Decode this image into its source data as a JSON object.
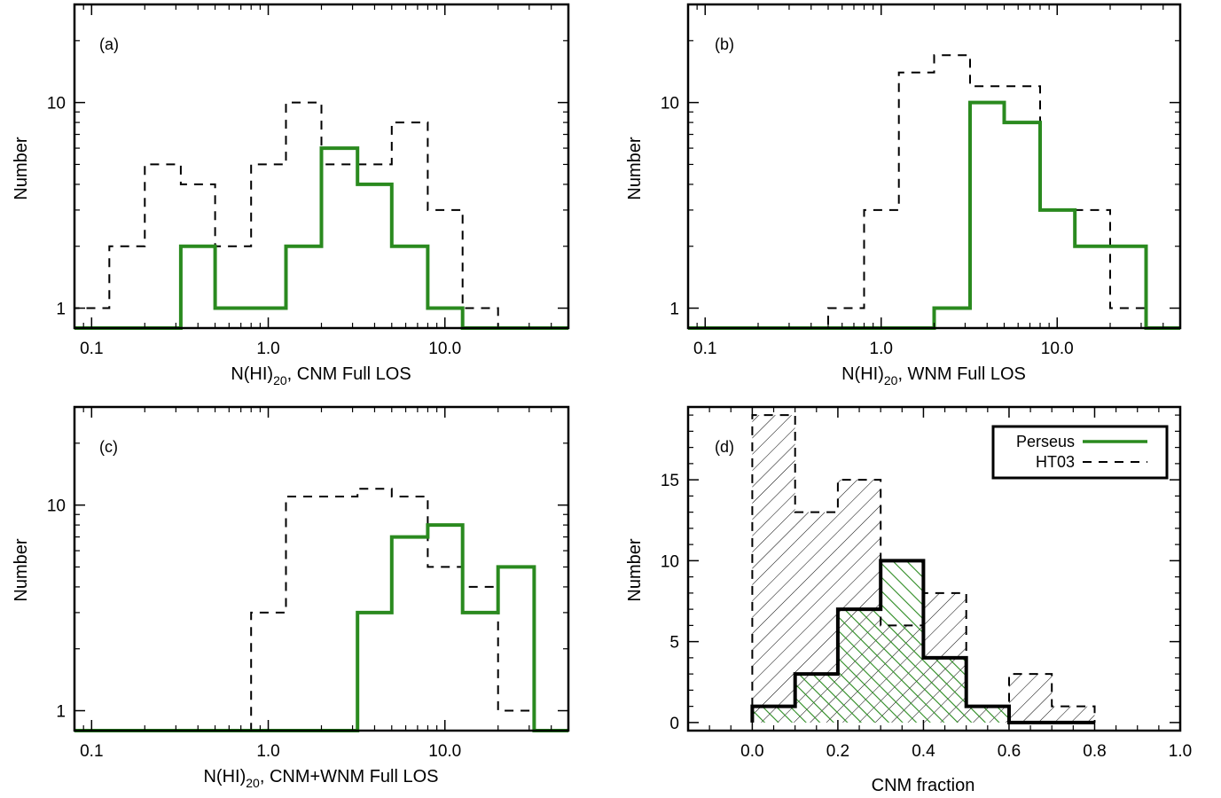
{
  "colors": {
    "perseus": "#2a8a1f",
    "ht03": "#000000"
  },
  "legend": {
    "placement": "top-right",
    "entries": [
      "Perseus",
      "HT03"
    ]
  },
  "chart_data": [
    {
      "type": "bar",
      "panel_label": "(a)",
      "xlabel": {
        "main": "N(HI)",
        "sub": "20",
        "rest": ", CNM Full LOS"
      },
      "ylabel": "Number",
      "x_scale": "log",
      "y_scale": "log",
      "xlim": [
        0.08,
        50
      ],
      "ylim": [
        0.8,
        30
      ],
      "x_ticks": [
        {
          "v": 0.1,
          "label": "0.1"
        },
        {
          "v": 1.0,
          "label": "1.0"
        },
        {
          "v": 10.0,
          "label": "10.0"
        }
      ],
      "y_ticks": [
        {
          "v": 1,
          "label": "1"
        },
        {
          "v": 10,
          "label": "10"
        }
      ],
      "bin_edges": [
        0.08,
        0.126,
        0.2,
        0.32,
        0.5,
        0.8,
        1.26,
        2.0,
        3.2,
        5.0,
        8.0,
        12.6,
        20.0,
        32.0,
        50.0
      ],
      "series": [
        {
          "name": "HT03",
          "style": "dashed",
          "values": [
            1,
            2,
            5,
            4,
            2,
            5,
            10,
            5,
            5,
            8,
            3,
            1,
            0,
            0
          ]
        },
        {
          "name": "Perseus",
          "style": "solid",
          "values": [
            0,
            0,
            0,
            2,
            1,
            1,
            2,
            6,
            4,
            2,
            1,
            0,
            0,
            0
          ]
        }
      ]
    },
    {
      "type": "bar",
      "panel_label": "(b)",
      "xlabel": {
        "main": "N(HI)",
        "sub": "20",
        "rest": ", WNM Full LOS"
      },
      "ylabel": "Number",
      "x_scale": "log",
      "y_scale": "log",
      "xlim": [
        0.08,
        50
      ],
      "ylim": [
        0.8,
        30
      ],
      "x_ticks": [
        {
          "v": 0.1,
          "label": "0.1"
        },
        {
          "v": 1.0,
          "label": "1.0"
        },
        {
          "v": 10.0,
          "label": "10.0"
        }
      ],
      "y_ticks": [
        {
          "v": 1,
          "label": "1"
        },
        {
          "v": 10,
          "label": "10"
        }
      ],
      "bin_edges": [
        0.08,
        0.126,
        0.2,
        0.32,
        0.5,
        0.8,
        1.26,
        2.0,
        3.2,
        5.0,
        8.0,
        12.6,
        20.0,
        32.0,
        50.0
      ],
      "series": [
        {
          "name": "HT03",
          "style": "dashed",
          "values": [
            0,
            0,
            0,
            0,
            1,
            3,
            14,
            17,
            12,
            12,
            3,
            3,
            1,
            0
          ]
        },
        {
          "name": "Perseus",
          "style": "solid",
          "values": [
            0,
            0,
            0,
            0,
            0,
            0,
            0,
            1,
            10,
            8,
            3,
            2,
            2,
            0
          ]
        }
      ]
    },
    {
      "type": "bar",
      "panel_label": "(c)",
      "xlabel": {
        "main": "N(HI)",
        "sub": "20",
        "rest": ", CNM+WNM Full LOS"
      },
      "ylabel": "Number",
      "x_scale": "log",
      "y_scale": "log",
      "xlim": [
        0.08,
        50
      ],
      "ylim": [
        0.8,
        30
      ],
      "x_ticks": [
        {
          "v": 0.1,
          "label": "0.1"
        },
        {
          "v": 1.0,
          "label": "1.0"
        },
        {
          "v": 10.0,
          "label": "10.0"
        }
      ],
      "y_ticks": [
        {
          "v": 1,
          "label": "1"
        },
        {
          "v": 10,
          "label": "10"
        }
      ],
      "bin_edges": [
        0.08,
        0.126,
        0.2,
        0.32,
        0.5,
        0.8,
        1.26,
        2.0,
        3.2,
        5.0,
        8.0,
        12.6,
        20.0,
        32.0,
        50.0
      ],
      "series": [
        {
          "name": "HT03",
          "style": "dashed",
          "values": [
            0,
            0,
            0,
            0,
            0,
            3,
            11,
            11,
            12,
            11,
            5,
            4,
            1,
            0
          ]
        },
        {
          "name": "Perseus",
          "style": "solid",
          "values": [
            0,
            0,
            0,
            0,
            0,
            0,
            0,
            0,
            3,
            7,
            8,
            3,
            5,
            0
          ]
        }
      ]
    },
    {
      "type": "bar",
      "panel_label": "(d)",
      "xlabel": {
        "main": "CNM fraction",
        "sub": "",
        "rest": ""
      },
      "ylabel": "Number",
      "x_scale": "linear",
      "y_scale": "linear",
      "xlim": [
        -0.15,
        1.0
      ],
      "ylim": [
        -0.5,
        19.5
      ],
      "x_ticks": [
        {
          "v": 0.0,
          "label": "0.0"
        },
        {
          "v": 0.2,
          "label": "0.2"
        },
        {
          "v": 0.4,
          "label": "0.4"
        },
        {
          "v": 0.6,
          "label": "0.6"
        },
        {
          "v": 0.8,
          "label": "0.8"
        },
        {
          "v": 1.0,
          "label": "1.0"
        }
      ],
      "y_ticks": [
        {
          "v": 0,
          "label": "0"
        },
        {
          "v": 5,
          "label": "5"
        },
        {
          "v": 10,
          "label": "10"
        },
        {
          "v": 15,
          "label": "15"
        }
      ],
      "bin_edges": [
        0.0,
        0.1,
        0.2,
        0.3,
        0.4,
        0.5,
        0.6,
        0.7,
        0.8
      ],
      "series": [
        {
          "name": "HT03",
          "style": "dashed",
          "values": [
            19,
            13,
            15,
            6,
            8,
            1,
            3,
            1
          ]
        },
        {
          "name": "Perseus",
          "style": "solid",
          "values": [
            1,
            3,
            7,
            10,
            4,
            1,
            0,
            0
          ]
        }
      ]
    }
  ]
}
